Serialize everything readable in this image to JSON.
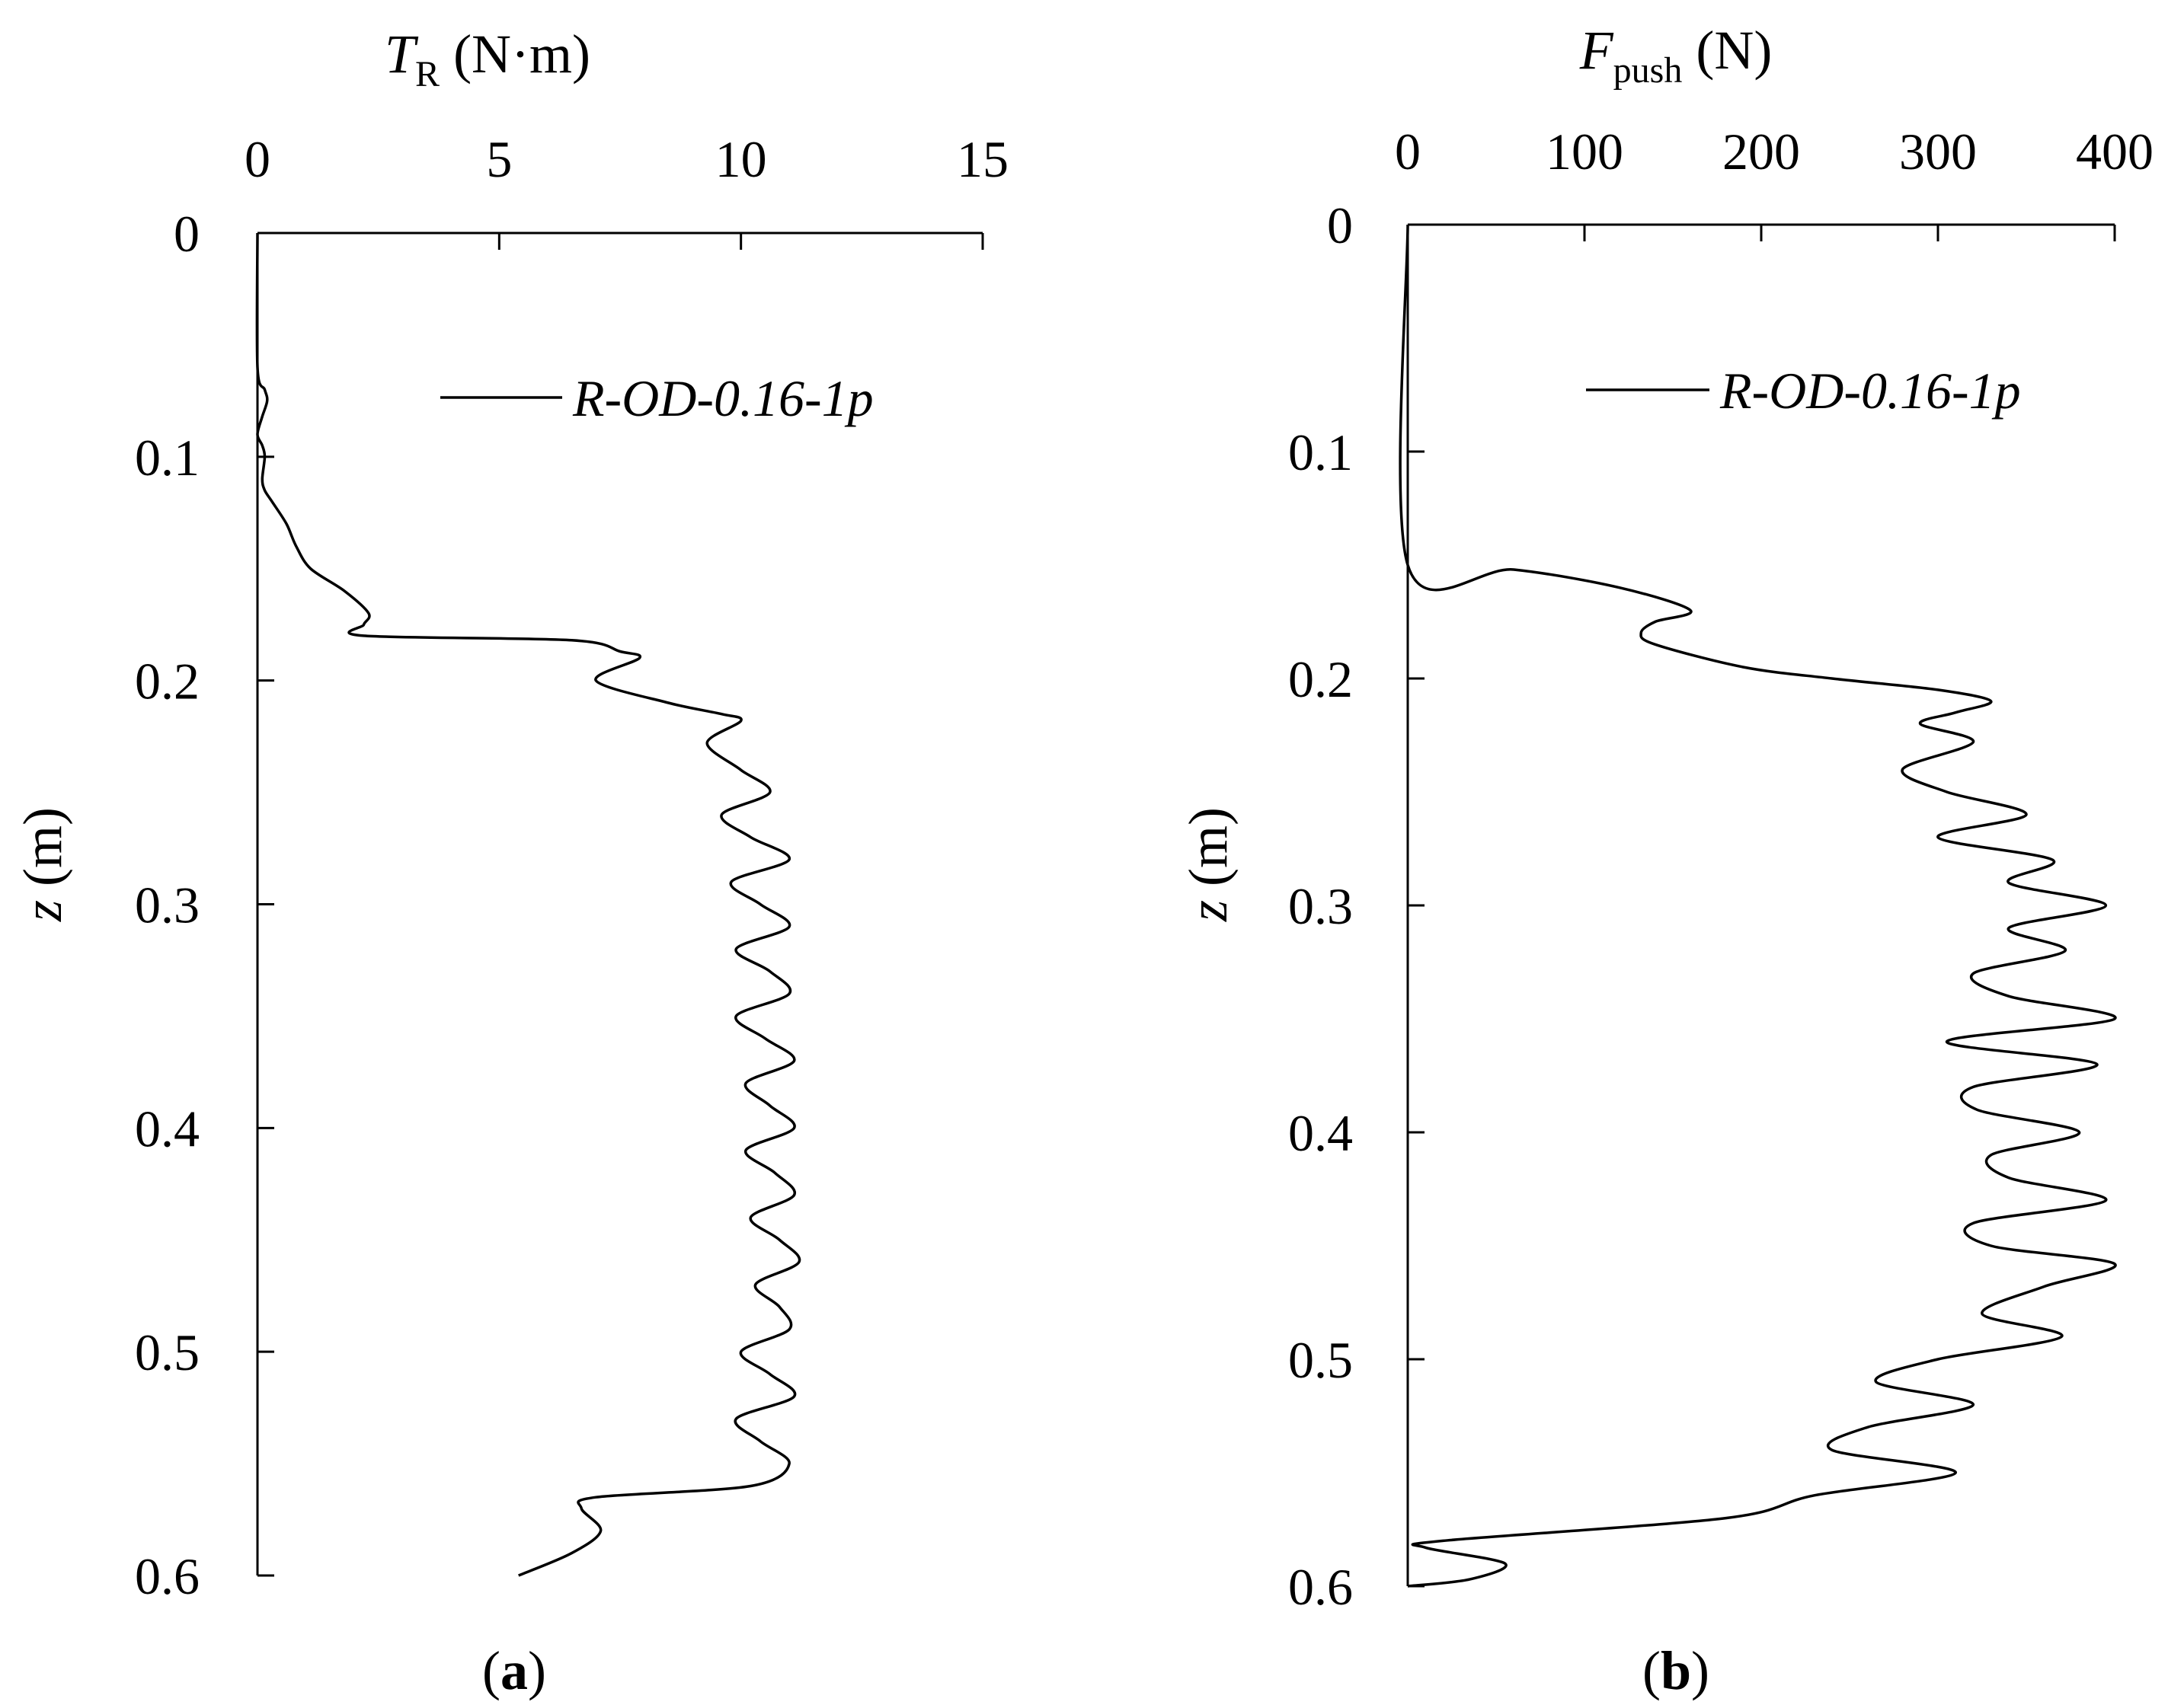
{
  "colors": {
    "background": "#ffffff",
    "ink": "#000000"
  },
  "chart_data": [
    {
      "type": "line",
      "panel_label": {
        "open": "(",
        "letter": "a",
        "close": ")"
      },
      "x_axis": {
        "title_symbol": "T",
        "title_subscript": "R",
        "title_unit": " (N·m)",
        "position": "top",
        "min": 0,
        "max": 15,
        "ticks": [
          0,
          5,
          10,
          15
        ],
        "tick_labels": [
          "0",
          "5",
          "10",
          "15"
        ]
      },
      "y_axis": {
        "title_symbol": "z",
        "title_unit": " (m)",
        "reversed": true,
        "min": 0,
        "max": 0.6,
        "ticks": [
          0,
          0.1,
          0.2,
          0.3,
          0.4,
          0.5,
          0.6
        ],
        "tick_labels": [
          "0",
          "0.1",
          "0.2",
          "0.3",
          "0.4",
          "0.5",
          "0.6"
        ]
      },
      "grid": false,
      "legend": {
        "position": "top-right",
        "entries": [
          "R-OD-0.16-1p"
        ]
      },
      "series": [
        {
          "name": "R-OD-0.16-1p",
          "points": [
            [
              0.0,
              0.0
            ],
            [
              0.0,
              0.06
            ],
            [
              0.15,
              0.07
            ],
            [
              0.2,
              0.075
            ],
            [
              0.1,
              0.082
            ],
            [
              0.0,
              0.09
            ],
            [
              0.1,
              0.095
            ],
            [
              0.15,
              0.1
            ],
            [
              0.1,
              0.11
            ],
            [
              0.15,
              0.115
            ],
            [
              0.3,
              0.12
            ],
            [
              0.6,
              0.13
            ],
            [
              0.8,
              0.14
            ],
            [
              1.1,
              0.15
            ],
            [
              1.8,
              0.16
            ],
            [
              2.3,
              0.17
            ],
            [
              2.2,
              0.175
            ],
            [
              2.2,
              0.18
            ],
            [
              6.5,
              0.182
            ],
            [
              7.5,
              0.187
            ],
            [
              7.9,
              0.19
            ],
            [
              7.0,
              0.2
            ],
            [
              8.5,
              0.21
            ],
            [
              9.6,
              0.215
            ],
            [
              10.0,
              0.218
            ],
            [
              9.3,
              0.228
            ],
            [
              10.0,
              0.24
            ],
            [
              10.6,
              0.25
            ],
            [
              9.6,
              0.26
            ],
            [
              10.2,
              0.27
            ],
            [
              11.0,
              0.28
            ],
            [
              9.8,
              0.29
            ],
            [
              10.4,
              0.3
            ],
            [
              11.0,
              0.31
            ],
            [
              9.9,
              0.32
            ],
            [
              10.6,
              0.33
            ],
            [
              11.0,
              0.34
            ],
            [
              9.9,
              0.35
            ],
            [
              10.5,
              0.36
            ],
            [
              11.1,
              0.37
            ],
            [
              10.1,
              0.38
            ],
            [
              10.6,
              0.39
            ],
            [
              11.1,
              0.4
            ],
            [
              10.1,
              0.41
            ],
            [
              10.7,
              0.42
            ],
            [
              11.1,
              0.43
            ],
            [
              10.2,
              0.44
            ],
            [
              10.8,
              0.45
            ],
            [
              11.2,
              0.46
            ],
            [
              10.3,
              0.47
            ],
            [
              10.8,
              0.48
            ],
            [
              11.0,
              0.49
            ],
            [
              10.0,
              0.5
            ],
            [
              10.6,
              0.51
            ],
            [
              11.1,
              0.52
            ],
            [
              9.9,
              0.53
            ],
            [
              10.4,
              0.54
            ],
            [
              11.0,
              0.55
            ],
            [
              10.2,
              0.56
            ],
            [
              7.0,
              0.565
            ],
            [
              6.7,
              0.57
            ],
            [
              7.1,
              0.58
            ],
            [
              6.5,
              0.59
            ],
            [
              5.4,
              0.6
            ]
          ]
        }
      ]
    },
    {
      "type": "line",
      "panel_label": {
        "open": "(",
        "letter": "b",
        "close": ")"
      },
      "x_axis": {
        "title_symbol": "F",
        "title_subscript": "push",
        "title_unit": " (N)",
        "position": "top",
        "min": 0,
        "max": 400,
        "ticks": [
          0,
          100,
          200,
          300,
          400
        ],
        "tick_labels": [
          "0",
          "100",
          "200",
          "300",
          "400"
        ]
      },
      "y_axis": {
        "title_symbol": "z",
        "title_unit": " (m)",
        "reversed": true,
        "min": 0,
        "max": 0.6,
        "ticks": [
          0,
          0.1,
          0.2,
          0.3,
          0.4,
          0.5,
          0.6
        ],
        "tick_labels": [
          "0",
          "0.1",
          "0.2",
          "0.3",
          "0.4",
          "0.5",
          "0.6"
        ]
      },
      "grid": false,
      "legend": {
        "position": "top-right",
        "entries": [
          "R-OD-0.16-1p"
        ]
      },
      "series": [
        {
          "name": "R-OD-0.16-1p",
          "points": [
            [
              0,
              0.0
            ],
            [
              0,
              0.15
            ],
            [
              60,
              0.152
            ],
            [
              120,
              0.16
            ],
            [
              160,
              0.17
            ],
            [
              140,
              0.175
            ],
            [
              132,
              0.18
            ],
            [
              140,
              0.185
            ],
            [
              190,
              0.195
            ],
            [
              240,
              0.2
            ],
            [
              300,
              0.205
            ],
            [
              330,
              0.21
            ],
            [
              310,
              0.215
            ],
            [
              290,
              0.22
            ],
            [
              320,
              0.228
            ],
            [
              280,
              0.24
            ],
            [
              305,
              0.25
            ],
            [
              350,
              0.26
            ],
            [
              300,
              0.27
            ],
            [
              365,
              0.28
            ],
            [
              340,
              0.29
            ],
            [
              395,
              0.3
            ],
            [
              340,
              0.31
            ],
            [
              372,
              0.32
            ],
            [
              320,
              0.33
            ],
            [
              340,
              0.34
            ],
            [
              400,
              0.35
            ],
            [
              305,
              0.36
            ],
            [
              390,
              0.37
            ],
            [
              320,
              0.38
            ],
            [
              322,
              0.39
            ],
            [
              380,
              0.4
            ],
            [
              330,
              0.41
            ],
            [
              340,
              0.42
            ],
            [
              395,
              0.43
            ],
            [
              320,
              0.44
            ],
            [
              330,
              0.45
            ],
            [
              400,
              0.458
            ],
            [
              360,
              0.468
            ],
            [
              325,
              0.48
            ],
            [
              370,
              0.49
            ],
            [
              300,
              0.5
            ],
            [
              265,
              0.51
            ],
            [
              320,
              0.52
            ],
            [
              260,
              0.53
            ],
            [
              240,
              0.54
            ],
            [
              310,
              0.55
            ],
            [
              230,
              0.56
            ],
            [
              180,
              0.57
            ],
            [
              20,
              0.58
            ],
            [
              10,
              0.583
            ],
            [
              55,
              0.59
            ],
            [
              35,
              0.597
            ],
            [
              0,
              0.6
            ]
          ]
        }
      ]
    }
  ]
}
